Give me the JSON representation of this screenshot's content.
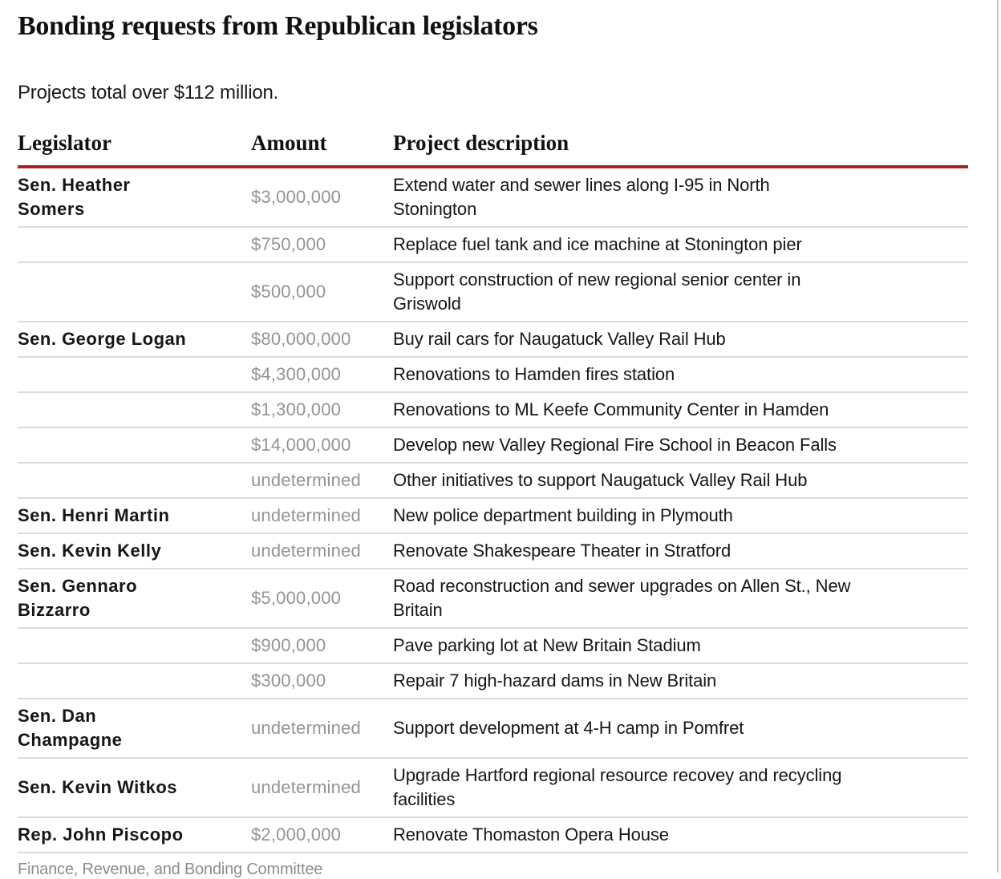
{
  "colors": {
    "header_rule": "#a82222",
    "row_divider": "#dcdcdc",
    "amount_text": "#949494",
    "body_text": "#161616",
    "footer_text": "#8d8d8d",
    "frame_border": "#cccccc"
  },
  "chart_data": {
    "type": "table",
    "title": "Bonding requests from Republican legislators",
    "subtitle": "Projects total over $112 million.",
    "columns": [
      "Legislator",
      "Amount",
      "Project description"
    ],
    "rows": [
      [
        "Sen. Heather\nSomers",
        "$3,000,000",
        "Extend water and sewer lines along I-95 in North\nStonington"
      ],
      [
        "",
        "$750,000",
        "Replace fuel tank and ice machine at Stonington pier"
      ],
      [
        "",
        "$500,000",
        "Support construction of new regional senior center in\nGriswold"
      ],
      [
        "Sen. George Logan",
        "$80,000,000",
        "Buy rail cars for Naugatuck Valley Rail Hub"
      ],
      [
        "",
        "$4,300,000",
        "Renovations to Hamden fires station"
      ],
      [
        "",
        "$1,300,000",
        "Renovations to ML Keefe Community Center in Hamden"
      ],
      [
        "",
        "$14,000,000",
        "Develop new Valley Regional Fire School in Beacon Falls"
      ],
      [
        "",
        "undetermined",
        "Other initiatives to support Naugatuck Valley Rail Hub"
      ],
      [
        "Sen. Henri Martin",
        "undetermined",
        "New police department building in Plymouth"
      ],
      [
        "Sen. Kevin Kelly",
        "undetermined",
        "Renovate Shakespeare Theater in Stratford"
      ],
      [
        "Sen. Gennaro\nBizzarro",
        "$5,000,000",
        "Road reconstruction and sewer upgrades on Allen St., New\nBritain"
      ],
      [
        "",
        "$900,000",
        "Pave parking lot at New Britain Stadium"
      ],
      [
        "",
        "$300,000",
        "Repair 7 high-hazard dams in New Britain"
      ],
      [
        "Sen. Dan\nChampagne",
        "undetermined",
        "Support development at 4-H camp in Pomfret"
      ],
      [
        "Sen. Kevin Witkos",
        "undetermined",
        "Upgrade Hartford regional resource recovey and recycling\nfacilities"
      ],
      [
        "Rep. John Piscopo",
        "$2,000,000",
        "Renovate Thomaston Opera House"
      ]
    ],
    "footer": "Finance, Revenue, and Bonding Committee",
    "layout": {
      "legend": "none",
      "grid": "horizontal-row-dividers",
      "header_rule_thickness_px": 4
    }
  }
}
